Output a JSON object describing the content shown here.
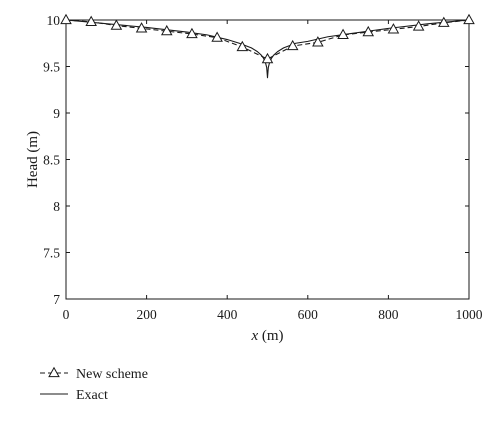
{
  "chart_data": {
    "type": "line",
    "xlabel_var": "x",
    "xlabel_unit": " (m)",
    "ylabel": "Head (m)",
    "xlim": [
      0,
      1000
    ],
    "ylim": [
      7,
      10
    ],
    "x_ticks": [
      0,
      200,
      400,
      600,
      800,
      1000
    ],
    "y_ticks": [
      7,
      7.5,
      8,
      8.5,
      9,
      9.5,
      10
    ],
    "x_tick_labels": [
      "0",
      "200",
      "400",
      "600",
      "800",
      "1000"
    ],
    "y_tick_labels": [
      "7",
      "7.5",
      "8",
      "8.5",
      "9",
      "9.5",
      "10"
    ],
    "grid": false,
    "legend_position": "bottom-left",
    "series": [
      {
        "name": "New scheme",
        "style": "dashed-triangle",
        "color": "#1a1a1a",
        "x": [
          0,
          62.5,
          125,
          187.5,
          250,
          312.5,
          375,
          437.5,
          500,
          562.5,
          625,
          687.5,
          750,
          812.5,
          875,
          937.5,
          1000
        ],
        "y": [
          10.0,
          9.98,
          9.94,
          9.91,
          9.88,
          9.85,
          9.81,
          9.71,
          9.58,
          9.72,
          9.76,
          9.84,
          9.87,
          9.9,
          9.93,
          9.97,
          10.0
        ]
      },
      {
        "name": "Exact",
        "style": "solid",
        "color": "#1a1a1a",
        "x": [
          0,
          100,
          200,
          300,
          350,
          400,
          430,
          460,
          475,
          485,
          490,
          495,
          498,
          500,
          502,
          505,
          510,
          515,
          525,
          540,
          570,
          600,
          650,
          700,
          800,
          900,
          1000
        ],
        "y": [
          10.0,
          9.96,
          9.92,
          9.87,
          9.84,
          9.79,
          9.75,
          9.7,
          9.66,
          9.62,
          9.59,
          9.54,
          9.49,
          9.38,
          9.49,
          9.54,
          9.59,
          9.62,
          9.66,
          9.7,
          9.75,
          9.77,
          9.82,
          9.85,
          9.91,
          9.96,
          10.0
        ]
      }
    ]
  }
}
